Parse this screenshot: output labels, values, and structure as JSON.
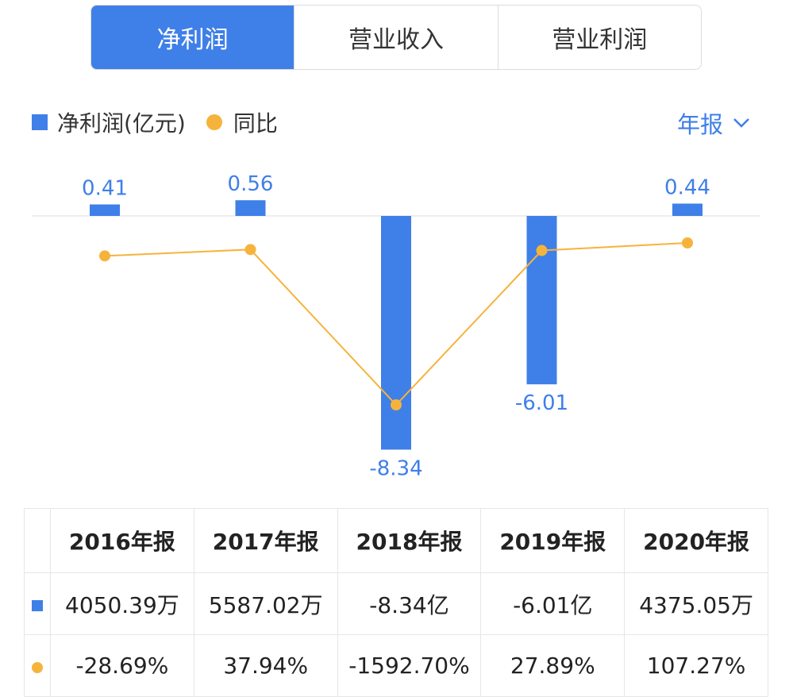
{
  "tabs": [
    {
      "label": "净利润",
      "active": true
    },
    {
      "label": "营业收入",
      "active": false
    },
    {
      "label": "营业利润",
      "active": false
    }
  ],
  "legend": {
    "bar_label": "净利润(亿元)",
    "line_label": "同比"
  },
  "period_selector": {
    "label": "年报",
    "icon": "chevron-down-icon"
  },
  "colors": {
    "accent": "#3f7fe8",
    "line": "#f6b33c",
    "negative": "#1fa36a",
    "positive": "#e2414b"
  },
  "chart_data": {
    "type": "bar",
    "categories": [
      "2016年报",
      "2017年报",
      "2018年报",
      "2019年报",
      "2020年报"
    ],
    "series": [
      {
        "name": "净利润(亿元)",
        "type": "bar",
        "values": [
          0.41,
          0.56,
          -8.34,
          -6.01,
          0.44
        ],
        "labels": [
          "0.41",
          "0.56",
          "-8.34",
          "-6.01",
          "0.44"
        ]
      },
      {
        "name": "同比",
        "type": "line",
        "values": [
          -28.69,
          37.94,
          -1592.7,
          27.89,
          107.27
        ]
      }
    ],
    "ylim": [
      -8.34,
      0.56
    ],
    "grid": false
  },
  "table": {
    "headers": [
      "2016年报",
      "2017年报",
      "2018年报",
      "2019年报",
      "2020年报"
    ],
    "rows": [
      {
        "marker": "bar",
        "cells": [
          "4050.39万",
          "5587.02万",
          "-8.34亿",
          "-6.01亿",
          "4375.05万"
        ]
      },
      {
        "marker": "line",
        "cells": [
          "-28.69%",
          "37.94%",
          "-1592.70%",
          "27.89%",
          "107.27%"
        ],
        "tones": [
          "neg",
          "pos",
          "neg",
          "pos",
          "pos"
        ]
      }
    ]
  }
}
